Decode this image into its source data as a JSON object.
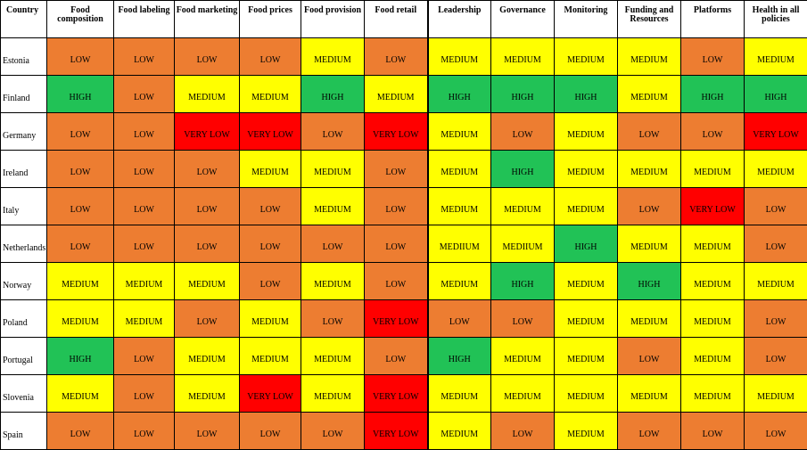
{
  "columns": [
    "Country",
    "Food composition",
    "Food labeling",
    "Food marketing",
    "Food prices",
    "Food provision",
    "Food retail",
    "Leadership",
    "Governance",
    "Monitoring",
    "Funding and Resources",
    "Platforms",
    "Health in all policies"
  ],
  "rows": [
    {
      "country": "Estonia",
      "values": [
        "LOW",
        "LOW",
        "LOW",
        "LOW",
        "MEDIUM",
        "LOW",
        "MEDIUM",
        "MEDIUM",
        "MEDIUM",
        "MEDIUM",
        "LOW",
        "MEDIUM"
      ]
    },
    {
      "country": "Finland",
      "values": [
        "HIGH",
        "LOW",
        "MEDIUM",
        "MEDIUM",
        "HIGH",
        "MEDIUM",
        "HIGH",
        "HIGH",
        "HIGH",
        "MEDIUM",
        "HIGH",
        "HIGH"
      ]
    },
    {
      "country": "Germany",
      "values": [
        "LOW",
        "LOW",
        "VERY LOW",
        "VERY LOW",
        "LOW",
        "VERY LOW",
        "MEDIUM",
        "LOW",
        "MEDIUM",
        "LOW",
        "LOW",
        "VERY LOW"
      ]
    },
    {
      "country": "Ireland",
      "values": [
        "LOW",
        "LOW",
        "LOW",
        "MEDIUM",
        "MEDIUM",
        "LOW",
        "MEDIUM",
        "HIGH",
        "MEDIUM",
        "MEDIUM",
        "MEDIUM",
        "MEDIUM"
      ]
    },
    {
      "country": "Italy",
      "values": [
        "LOW",
        "LOW",
        "LOW",
        "LOW",
        "MEDIUM",
        "LOW",
        "MEDIUM",
        "MEDIUM",
        "MEDIUM",
        "LOW",
        "VERY LOW",
        "LOW"
      ]
    },
    {
      "country": "Netherlands",
      "values": [
        "LOW",
        "LOW",
        "LOW",
        "LOW",
        "LOW",
        "LOW",
        "MEDIIUM",
        "MEDIIUM",
        "HIGH",
        "MEDIUM",
        "MEDIUM",
        "LOW"
      ]
    },
    {
      "country": "Norway",
      "values": [
        "MEDIUM",
        "MEDIUM",
        "MEDIUM",
        "LOW",
        "MEDIUM",
        "LOW",
        "MEDIUM",
        "HIGH",
        "MEDIUM",
        "HIGH",
        "MEDIUM",
        "MEDIUM"
      ]
    },
    {
      "country": "Poland",
      "values": [
        "MEDIUM",
        "MEDIUM",
        "LOW",
        "MEDIUM",
        "LOW",
        "VERY LOW",
        "LOW",
        "LOW",
        "MEDIUM",
        "MEDIUM",
        "MEDIUM",
        "LOW"
      ]
    },
    {
      "country": "Portugal",
      "values": [
        "HIGH",
        "LOW",
        "MEDIUM",
        "MEDIUM",
        "MEDIUM",
        "LOW",
        "HIGH",
        "MEDIUM",
        "MEDIUM",
        "LOW",
        "MEDIUM",
        "LOW"
      ]
    },
    {
      "country": "Slovenia",
      "values": [
        "MEDIUM",
        "LOW",
        "MEDIUM",
        "VERY LOW",
        "MEDIUM",
        "VERY LOW",
        "MEDIUM",
        "MEDIUM",
        "MEDIUM",
        "MEDIUM",
        "MEDIUM",
        "MEDIUM"
      ]
    },
    {
      "country": "Spain",
      "values": [
        "LOW",
        "LOW",
        "LOW",
        "LOW",
        "LOW",
        "VERY LOW",
        "MEDIUM",
        "LOW",
        "MEDIUM",
        "LOW",
        "LOW",
        "LOW"
      ]
    }
  ],
  "colors": {
    "HIGH": "#21c256",
    "MEDIUM": "#ffff00",
    "LOW": "#ed7d31",
    "VERY LOW": "#ff0000"
  }
}
